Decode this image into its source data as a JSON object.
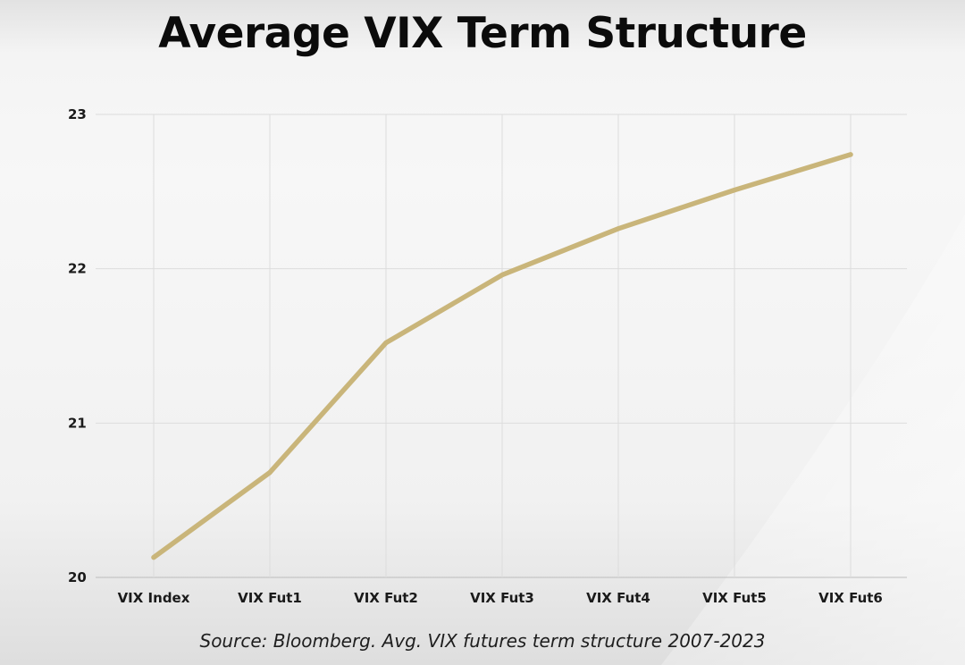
{
  "chart_data": {
    "type": "line",
    "title": "Average VIX Term Structure",
    "xlabel": "",
    "ylabel": "",
    "categories": [
      "VIX Index",
      "VIX Fut1",
      "VIX Fut2",
      "VIX Fut3",
      "VIX Fut4",
      "VIX Fut5",
      "VIX Fut6"
    ],
    "series": [
      {
        "values": [
          20.13,
          20.68,
          21.52,
          21.96,
          22.26,
          22.51,
          22.74
        ]
      }
    ],
    "ylim": [
      20,
      23
    ],
    "yticks": [
      20,
      21,
      22,
      23
    ],
    "grid": true,
    "legend": "none",
    "line_color": "#c9b57a",
    "source": "Source: Bloomberg. Avg. VIX futures term structure 2007-2023"
  }
}
